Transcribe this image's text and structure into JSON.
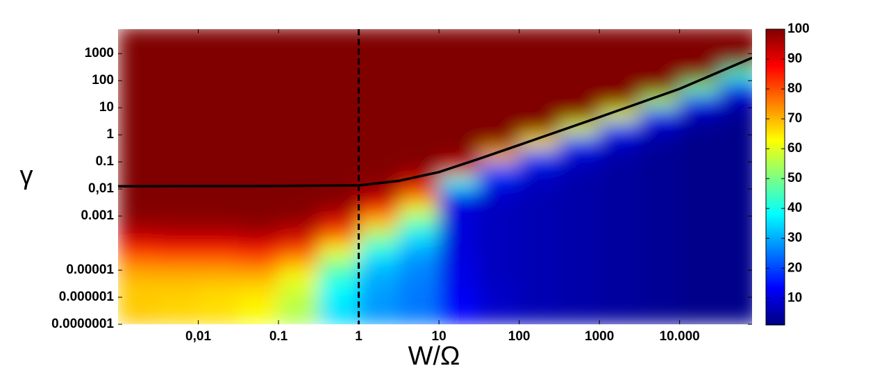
{
  "chart_data": {
    "type": "heatmap",
    "xlabel": "W/Ω",
    "ylabel": "γ",
    "xscale": "log",
    "yscale": "log",
    "colormap": "jet",
    "xlim": [
      0.001,
      80000
    ],
    "ylim": [
      1e-07,
      8000
    ],
    "clim": [
      1,
      100
    ],
    "xticks": [
      {
        "value": 0.01,
        "label": "0,01"
      },
      0.1,
      1,
      10,
      100,
      1000,
      {
        "value": 10000,
        "label": "10.000"
      }
    ],
    "yticks": [
      {
        "value": 1e-07,
        "label": "0.0000001"
      },
      1e-06,
      1e-05,
      0.001,
      {
        "value": 0.01,
        "label": "0,01"
      },
      0.1,
      1,
      10,
      100,
      1000
    ],
    "cticks": [
      10,
      20,
      30,
      40,
      50,
      60,
      70,
      80,
      90,
      100
    ],
    "xbins": [
      0.001,
      0.00316,
      0.01,
      0.0316,
      0.1,
      0.316,
      1,
      3.16,
      10,
      31.6,
      100,
      316,
      1000,
      3162,
      10000,
      31623,
      100000
    ],
    "ybins": [
      1e-07,
      3.16e-07,
      1e-06,
      3.16e-06,
      1e-05,
      3.16e-05,
      0.0001,
      0.000316,
      0.001,
      0.00316,
      0.01,
      0.0316,
      0.1,
      0.316,
      1,
      3.16,
      10,
      31.6,
      100,
      316,
      1000,
      3162,
      10000
    ],
    "values": [
      [
        68,
        68,
        68,
        70,
        75,
        85,
        93,
        98,
        100,
        100,
        100,
        100,
        100,
        100,
        100,
        100,
        100,
        100,
        100,
        100,
        100,
        100
      ],
      [
        67,
        67,
        68,
        70,
        76,
        86,
        94,
        98,
        100,
        100,
        100,
        100,
        100,
        100,
        100,
        100,
        100,
        100,
        100,
        100,
        100,
        100
      ],
      [
        66,
        66,
        67,
        70,
        76,
        86,
        94,
        98,
        100,
        100,
        100,
        100,
        100,
        100,
        100,
        100,
        100,
        100,
        100,
        100,
        100,
        100
      ],
      [
        62,
        64,
        66,
        70,
        78,
        88,
        95,
        99,
        100,
        100,
        100,
        100,
        100,
        100,
        100,
        100,
        100,
        100,
        100,
        100,
        100,
        100
      ],
      [
        55,
        56,
        58,
        62,
        70,
        82,
        92,
        97,
        100,
        100,
        100,
        100,
        100,
        100,
        100,
        100,
        100,
        100,
        100,
        100,
        100,
        100
      ],
      [
        35,
        36,
        38,
        42,
        50,
        62,
        78,
        90,
        97,
        100,
        100,
        100,
        100,
        100,
        100,
        100,
        100,
        100,
        100,
        100,
        100,
        100
      ],
      [
        28,
        28,
        29,
        30,
        33,
        40,
        52,
        68,
        85,
        95,
        99,
        100,
        100,
        100,
        100,
        100,
        100,
        100,
        100,
        100,
        100,
        100
      ],
      [
        25,
        25,
        25,
        26,
        27,
        30,
        36,
        46,
        60,
        78,
        92,
        99,
        100,
        100,
        100,
        100,
        100,
        100,
        100,
        100,
        100,
        100
      ],
      [
        14,
        13,
        12,
        11,
        11,
        10,
        10,
        10,
        10,
        12,
        40,
        90,
        100,
        100,
        100,
        100,
        100,
        100,
        100,
        100,
        100,
        100
      ],
      [
        8,
        8,
        8,
        7,
        7,
        7,
        7,
        7,
        7,
        8,
        12,
        22,
        70,
        100,
        100,
        100,
        100,
        100,
        100,
        100,
        100,
        100
      ],
      [
        6,
        6,
        6,
        6,
        6,
        6,
        6,
        6,
        6,
        6,
        7,
        10,
        20,
        65,
        100,
        100,
        100,
        100,
        100,
        100,
        100,
        100
      ],
      [
        5,
        5,
        5,
        5,
        5,
        5,
        5,
        5,
        5,
        5,
        5,
        6,
        9,
        18,
        60,
        100,
        100,
        100,
        100,
        100,
        100,
        100
      ],
      [
        4,
        4,
        4,
        4,
        4,
        4,
        4,
        4,
        4,
        4,
        4,
        4,
        5,
        8,
        17,
        60,
        100,
        100,
        100,
        100,
        100,
        100
      ],
      [
        3,
        3,
        3,
        3,
        3,
        3,
        3,
        3,
        3,
        3,
        3,
        3,
        3,
        4,
        7,
        15,
        55,
        100,
        100,
        100,
        100,
        100
      ],
      [
        2,
        2,
        2,
        2,
        2,
        2,
        2,
        2,
        2,
        2,
        2,
        2,
        2,
        2,
        3,
        6,
        14,
        50,
        100,
        100,
        100,
        100
      ],
      [
        2,
        2,
        2,
        2,
        2,
        2,
        2,
        2,
        2,
        2,
        2,
        2,
        2,
        2,
        2,
        3,
        6,
        13,
        45,
        100,
        100,
        100
      ]
    ],
    "boundary": {
      "color": "#000000",
      "x": [
        0.001,
        0.1,
        1,
        3.16,
        10,
        31.6,
        100,
        1000,
        10000,
        80000
      ],
      "y": [
        0.0126,
        0.0129,
        0.0135,
        0.02,
        0.042,
        0.13,
        0.42,
        4.5,
        50,
        700
      ]
    },
    "vline_x": 1
  }
}
